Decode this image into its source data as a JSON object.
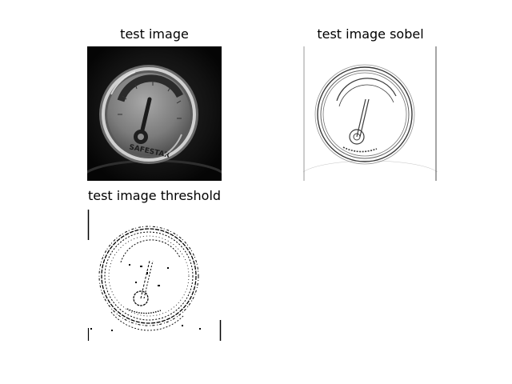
{
  "figure": {
    "panels": [
      {
        "title": "test image",
        "image": "grayscale photo of a round pressure gauge on a dark background"
      },
      {
        "title": "test image sobel",
        "image": "inverted sobel edge map of the gauge"
      },
      {
        "title": "test image threshold",
        "image": "binary thresholded edge map of the gauge"
      }
    ],
    "gauge_brand": "SAFESTAR",
    "colors": {
      "background": "#ffffff",
      "dark_photo": "#0a0a0a"
    }
  }
}
